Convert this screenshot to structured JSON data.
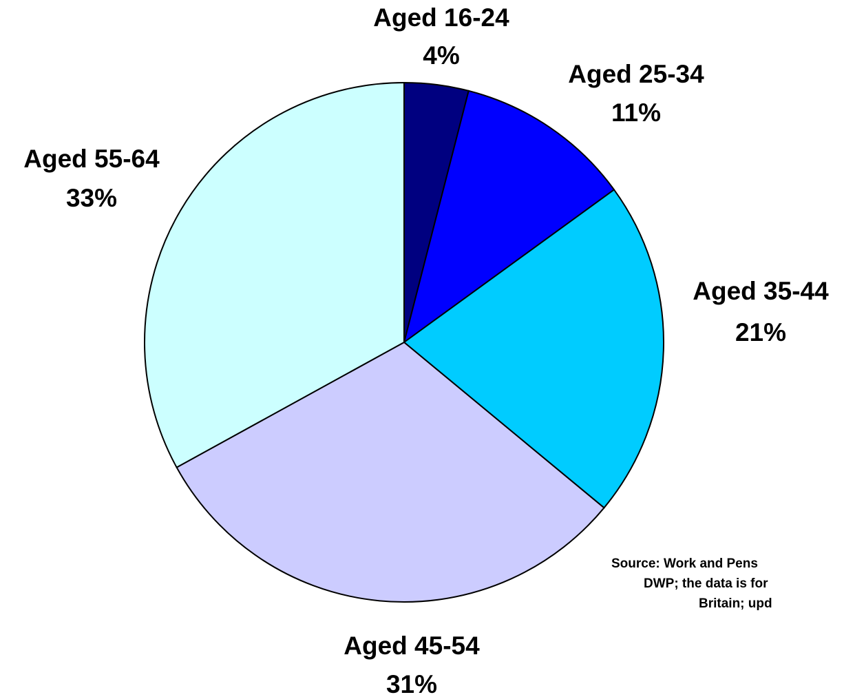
{
  "chart_data": {
    "type": "pie",
    "categories": [
      "Aged 16-24",
      "Aged 25-34",
      "Aged 35-44",
      "Aged 45-54",
      "Aged 55-64"
    ],
    "values": [
      4,
      11,
      21,
      31,
      33
    ],
    "value_labels": [
      "4%",
      "11%",
      "21%",
      "31%",
      "33%"
    ],
    "colors": [
      "#000080",
      "#0000ff",
      "#00ccff",
      "#ccccff",
      "#ccffff"
    ],
    "annotation": [
      "Source: Work and Pens",
      "DWP; the data is for",
      "Britain; upd"
    ]
  }
}
